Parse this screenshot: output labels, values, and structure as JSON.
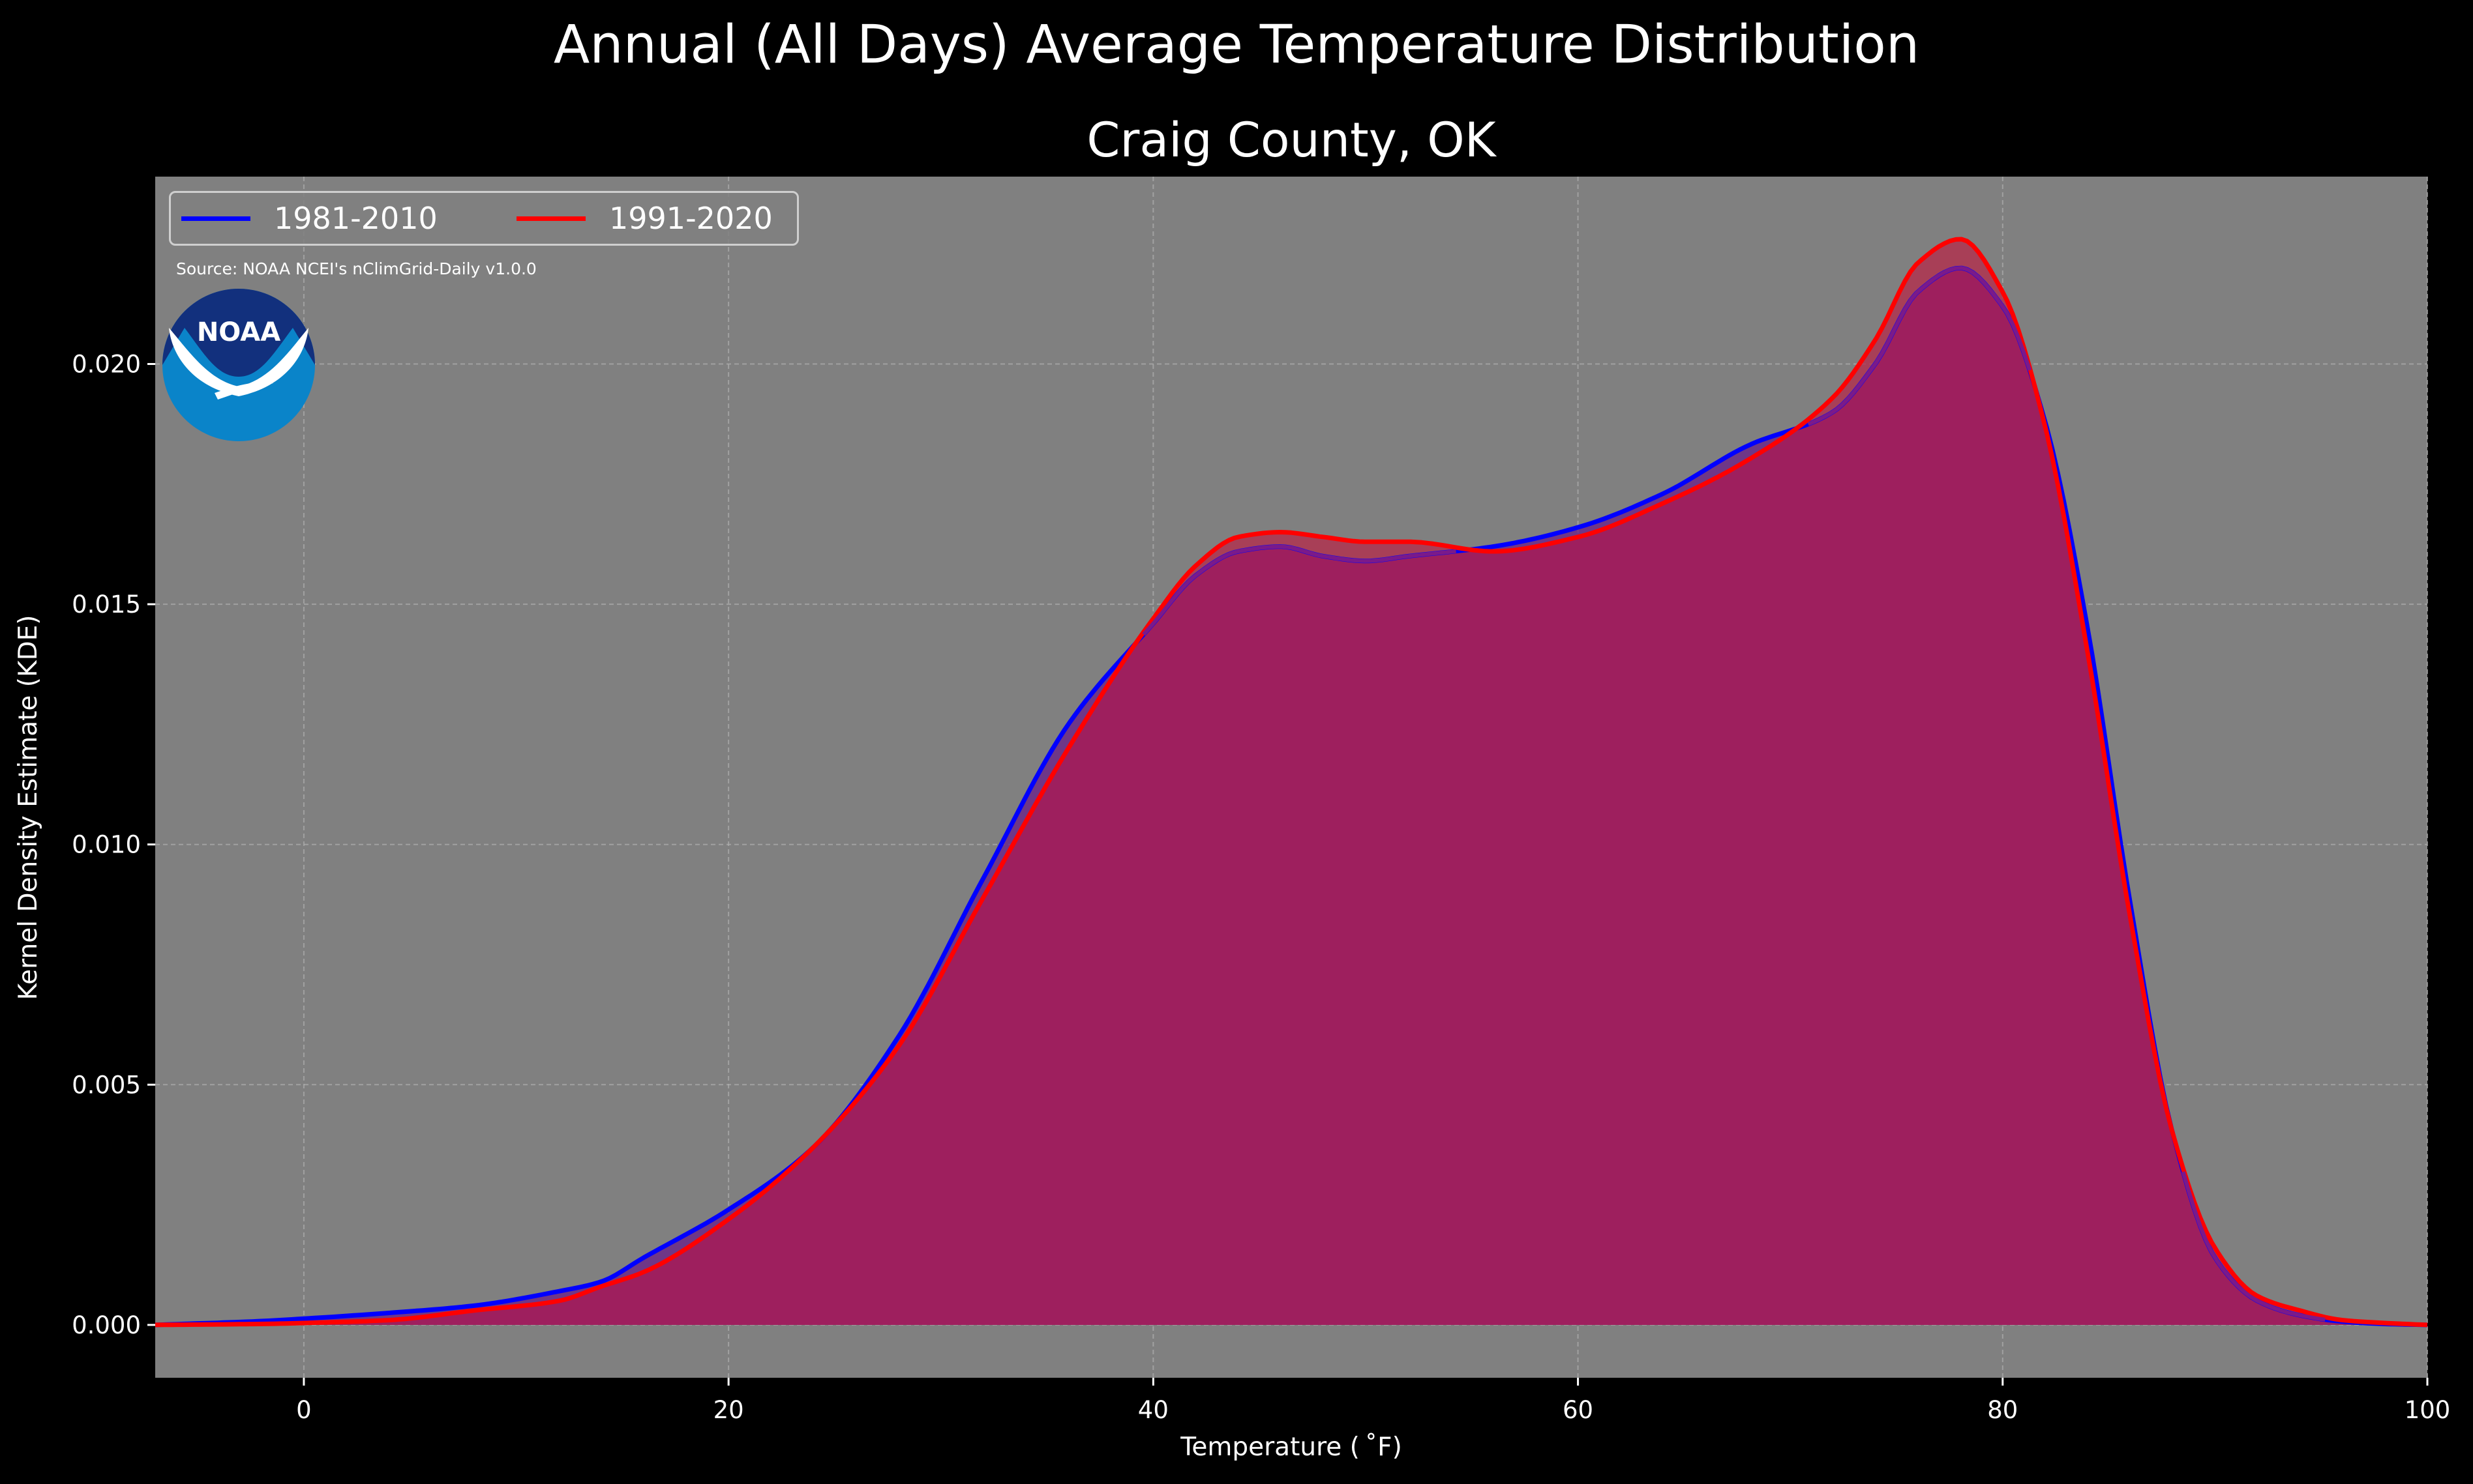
{
  "title": "Annual (All Days) Average Temperature Distribution",
  "subtitle": "Craig County, OK",
  "source_note": "Source: NOAA NCEI's nClimGrid-Daily v1.0.0",
  "logo": {
    "text": "NOAA",
    "icon": "noaa-logo-icon"
  },
  "colors": {
    "background": "#000000",
    "plot_background": "#808080",
    "series_1981": "#0000ff",
    "series_1991": "#ff0000",
    "fill_overlap": "#9e1f5e",
    "fill_red_only": "#b52a4a",
    "fill_blue_only": "#6a1f8a",
    "grid": "#b0b0b0"
  },
  "chart_data": {
    "type": "area",
    "title": "Annual (All Days) Average Temperature Distribution",
    "subtitle": "Craig County, OK",
    "xlabel": "Temperature ($^\\circ$F)",
    "ylabel": "Kernel Density Estimate (KDE)",
    "xlim": [
      -7,
      100
    ],
    "ylim": [
      -0.0011,
      0.0239
    ],
    "xticks": [
      0,
      20,
      40,
      60,
      80,
      100
    ],
    "xtick_labels": [
      "0",
      "20",
      "40",
      "60",
      "80",
      "100"
    ],
    "yticks": [
      0.0,
      0.005,
      0.01,
      0.015,
      0.02
    ],
    "ytick_labels": [
      "0.000",
      "0.005",
      "0.010",
      "0.015",
      "0.020"
    ],
    "grid": true,
    "legend_position": "upper-left",
    "series": [
      {
        "name": "1981-2010",
        "color": "#0000ff",
        "x": [
          -7,
          -2,
          0,
          4,
          8,
          12,
          14,
          16,
          20,
          24,
          28,
          32,
          36,
          40,
          42,
          44,
          46,
          48,
          50,
          52,
          56,
          60,
          64,
          68,
          72,
          74,
          76,
          78,
          80,
          82,
          84,
          86,
          88,
          90,
          92,
          94,
          96,
          98,
          100
        ],
        "y": [
          0.0,
          8e-05,
          0.00013,
          0.00025,
          0.0004,
          0.0007,
          0.0009,
          0.0014,
          0.0024,
          0.0037,
          0.006,
          0.0093,
          0.0125,
          0.0146,
          0.0156,
          0.0161,
          0.0162,
          0.016,
          0.0159,
          0.016,
          0.0162,
          0.0166,
          0.0173,
          0.0183,
          0.019,
          0.02,
          0.0215,
          0.022,
          0.0212,
          0.0188,
          0.0145,
          0.0088,
          0.004,
          0.0014,
          0.0005,
          0.0002,
          7e-05,
          2e-05,
          0.0
        ]
      },
      {
        "name": "1991-2020",
        "color": "#ff0000",
        "x": [
          -7,
          -2,
          0,
          4,
          8,
          12,
          14,
          16,
          20,
          24,
          28,
          32,
          36,
          40,
          42,
          44,
          46,
          48,
          50,
          52,
          56,
          60,
          64,
          68,
          72,
          74,
          76,
          78,
          80,
          82,
          84,
          86,
          88,
          90,
          92,
          94,
          96,
          98,
          100
        ],
        "y": [
          0.0,
          2e-05,
          4e-05,
          0.0001,
          0.0003,
          0.0005,
          0.0008,
          0.0011,
          0.0022,
          0.0037,
          0.0058,
          0.0089,
          0.012,
          0.0147,
          0.0158,
          0.0164,
          0.0165,
          0.0164,
          0.0163,
          0.0163,
          0.0161,
          0.0164,
          0.0171,
          0.018,
          0.0193,
          0.0205,
          0.0221,
          0.0226,
          0.0215,
          0.0187,
          0.014,
          0.0085,
          0.004,
          0.0016,
          0.0006,
          0.0003,
          0.0001,
          4e-05,
          0.0
        ]
      }
    ]
  }
}
